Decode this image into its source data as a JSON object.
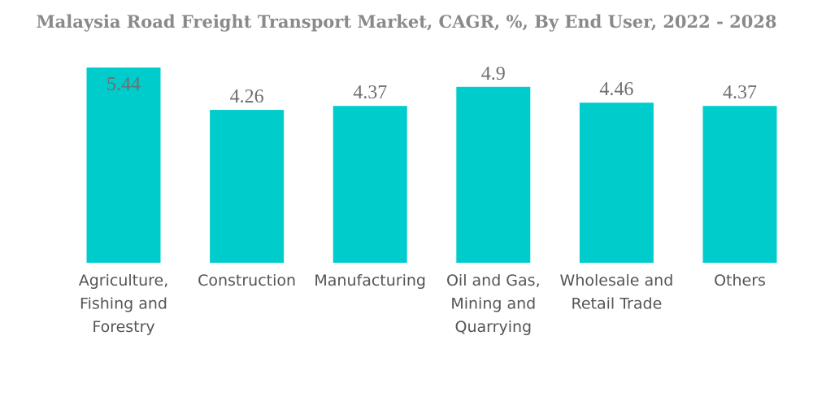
{
  "chart_data": {
    "type": "bar",
    "title": "Malaysia Road Freight Transport Market, CAGR, %, By End User, 2022 - 2028",
    "xlabel": "",
    "ylabel": "",
    "categories": [
      [
        "Agriculture,",
        "Fishing and",
        "Forestry"
      ],
      [
        "Construction"
      ],
      [
        "Manufacturing"
      ],
      [
        "Oil and Gas,",
        "Mining and",
        "Quarrying"
      ],
      [
        "Wholesale and",
        "Retail Trade"
      ],
      [
        "Others"
      ]
    ],
    "values": [
      5.44,
      4.26,
      4.37,
      4.9,
      4.46,
      4.37
    ],
    "value_labels": [
      "5.44",
      "4.26",
      "4.37",
      "4.9",
      "4.46",
      "4.37"
    ],
    "ylim": [
      0,
      5.44
    ],
    "bar_color": "#00cccc",
    "grid": false,
    "legend": "none"
  }
}
